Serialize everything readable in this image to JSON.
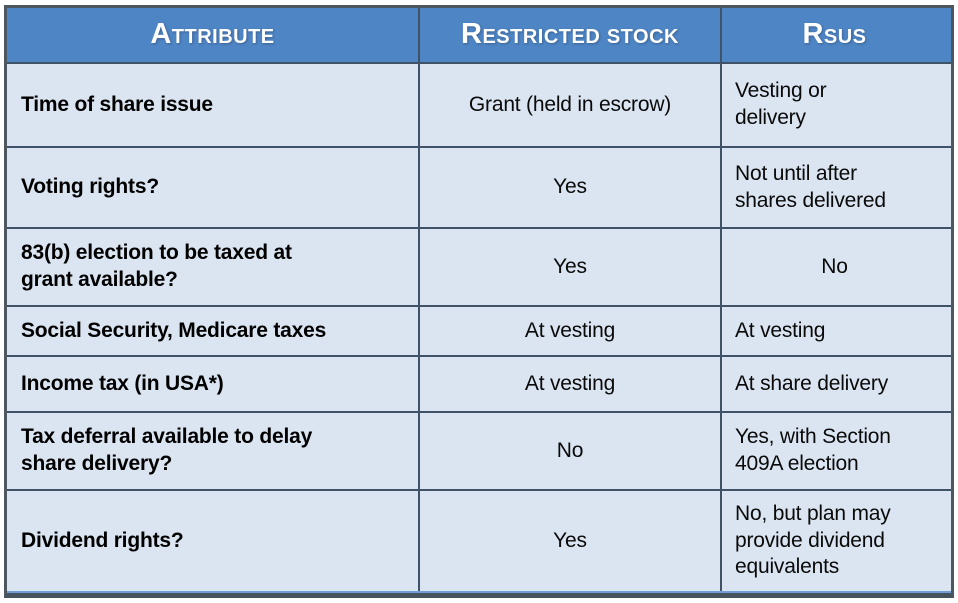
{
  "chart_data": {
    "type": "table",
    "title": "",
    "columns": [
      "Attribute",
      "Restricted stock",
      "Rsus"
    ],
    "columns_rendered": [
      "ATTRIBUTE",
      "RESTRICTED STOCK",
      "RSUS"
    ],
    "header_style": "small-caps",
    "rows": [
      [
        "Time of share issue",
        "Grant (held in escrow)",
        "Vesting or\ndelivery"
      ],
      [
        "Voting rights?",
        "Yes",
        "Not until after\nshares delivered"
      ],
      [
        "83(b) election to be taxed at\ngrant available?",
        "Yes",
        "No"
      ],
      [
        "Social Security, Medicare taxes",
        "At vesting",
        "At vesting"
      ],
      [
        "Income tax (in USA*)",
        "At vesting",
        "At share delivery"
      ],
      [
        "Tax deferral available to delay\nshare delivery?",
        "No",
        "Yes, with Section\n409A election"
      ],
      [
        "Dividend rights?",
        "Yes",
        "No, but plan may\nprovide dividend\nequivalents"
      ]
    ],
    "col_align": [
      "left",
      "center",
      "left"
    ],
    "cell_align_overrides": [
      {
        "row": 2,
        "col": 2,
        "align": "center"
      }
    ],
    "grid": true,
    "legend_position": "none"
  },
  "colors": {
    "header_bg": "#4e85c5",
    "header_text": "#ffffff",
    "body_bg": "#dbe5f1",
    "grid_line": "#405268",
    "outer_border": "#4e565e",
    "bottom_accent": "#6f9dd6",
    "bottom_edge": "#46535f"
  }
}
